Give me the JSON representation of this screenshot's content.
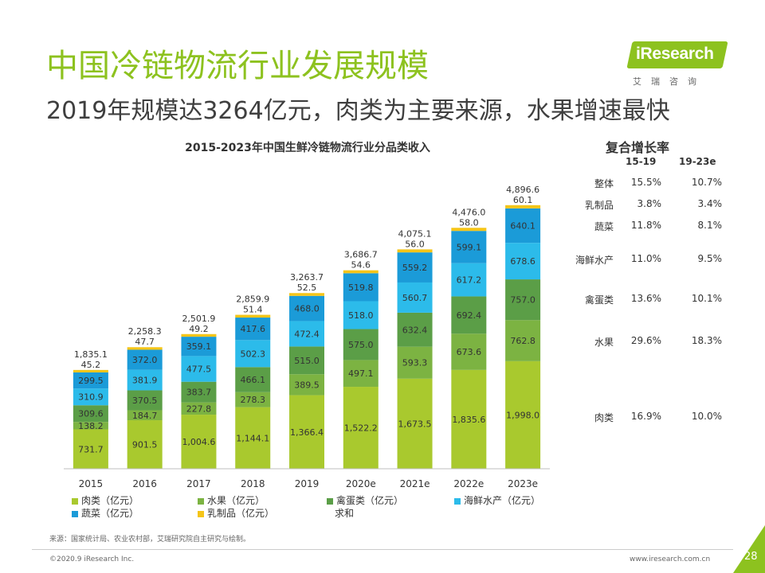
{
  "header": {
    "title": "中国冷链物流行业发展规模",
    "subtitle": "2019年规模达3264亿元，肉类为主要来源，水果增速最快"
  },
  "logo": {
    "text": "iResearch",
    "sub": "艾瑞咨询"
  },
  "chart_data": {
    "type": "bar",
    "stacked": true,
    "title": "2015-2023年中国生鲜冷链物流行业分品类收入",
    "categories": [
      "2015",
      "2016",
      "2017",
      "2018",
      "2019",
      "2020e",
      "2021e",
      "2022e",
      "2023e"
    ],
    "series": [
      {
        "name": "肉类（亿元）",
        "color": "#A9C92E",
        "values": [
          731.7,
          901.5,
          1004.6,
          1144.1,
          1366.4,
          1522.2,
          1673.5,
          1835.6,
          1998.0
        ]
      },
      {
        "name": "水果（亿元）",
        "color": "#7CB342",
        "values": [
          138.2,
          184.7,
          227.8,
          278.3,
          389.5,
          497.1,
          593.3,
          673.6,
          762.8
        ]
      },
      {
        "name": "禽蛋类（亿元）",
        "color": "#5B9E47",
        "values": [
          309.6,
          370.5,
          383.7,
          466.1,
          515.0,
          575.0,
          632.4,
          692.4,
          757.0
        ]
      },
      {
        "name": "海鲜水产（亿元）",
        "color": "#2CBBEA",
        "values": [
          310.9,
          381.9,
          477.5,
          502.3,
          472.4,
          518.0,
          560.7,
          617.2,
          678.6
        ]
      },
      {
        "name": "蔬菜（亿元）",
        "color": "#1B9BD8",
        "values": [
          299.5,
          372.0,
          359.1,
          417.6,
          468.0,
          519.8,
          559.2,
          599.1,
          640.1
        ]
      },
      {
        "name": "乳制品（亿元）",
        "color": "#F5C518",
        "values": [
          45.2,
          47.7,
          49.2,
          51.4,
          52.5,
          54.6,
          56.0,
          58.0,
          60.1
        ]
      }
    ],
    "totals": [
      1835.1,
      2258.3,
      2501.9,
      2859.9,
      3263.7,
      3686.7,
      4075.1,
      4476.0,
      4896.6
    ],
    "totals_legend": "求和",
    "ylim": [
      0,
      5000
    ],
    "grid": false,
    "legend_position": "bottom"
  },
  "growth": {
    "title": "复合增长率",
    "periods": [
      "15-19",
      "19-23e"
    ],
    "rows": [
      {
        "label": "整体",
        "v1": "15.5%",
        "v2": "10.7%"
      },
      {
        "label": "乳制品",
        "v1": "3.8%",
        "v2": "3.4%"
      },
      {
        "label": "蔬菜",
        "v1": "11.8%",
        "v2": "8.1%"
      },
      {
        "label": "海鲜水产",
        "v1": "11.0%",
        "v2": "9.5%"
      },
      {
        "label": "禽蛋类",
        "v1": "13.6%",
        "v2": "10.1%"
      },
      {
        "label": "水果",
        "v1": "29.6%",
        "v2": "18.3%"
      },
      {
        "label": "肉类",
        "v1": "16.9%",
        "v2": "10.0%"
      }
    ]
  },
  "footer": {
    "source": "来源：国家统计局、农业农村部，艾瑞研究院自主研究与绘制。",
    "copyright": "©2020.9 iResearch Inc.",
    "website": "www.iresearch.com.cn",
    "page": "28"
  }
}
